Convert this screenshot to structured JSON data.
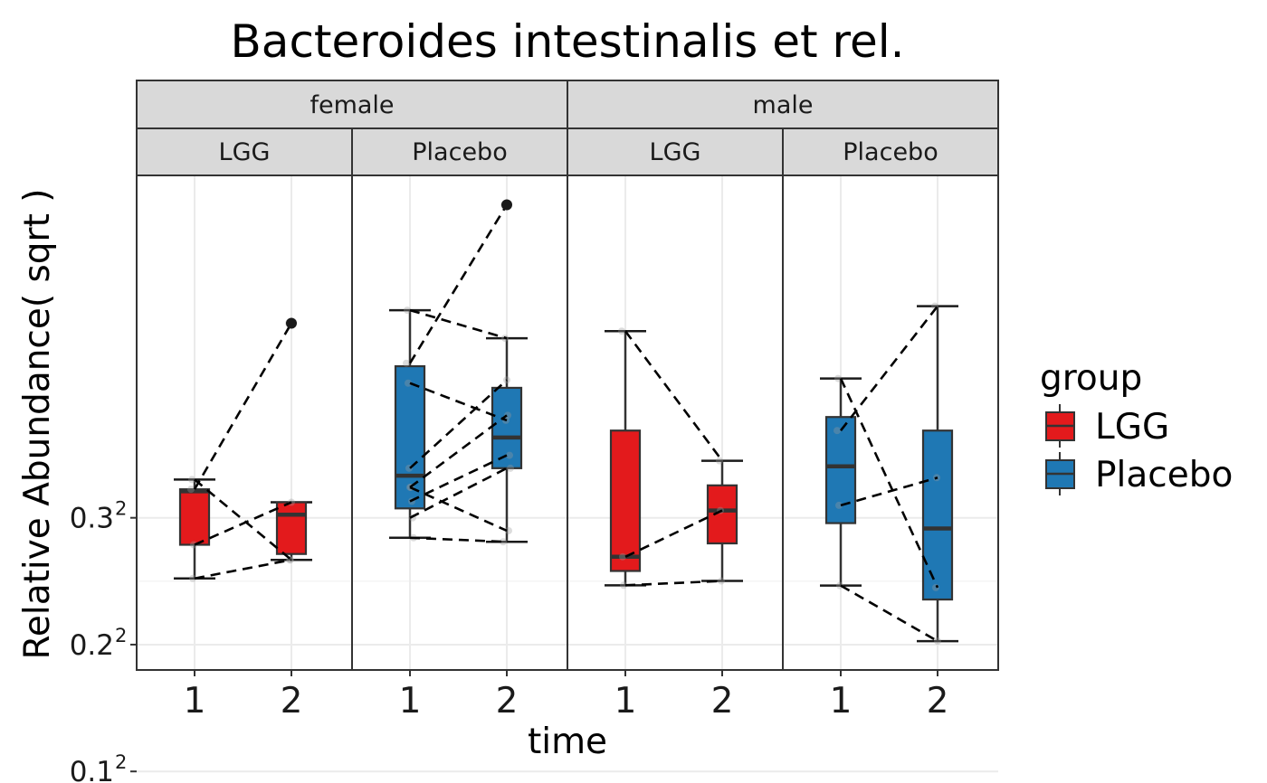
{
  "chart_data": {
    "type": "box",
    "title": "Bacteroides intestinalis et rel.",
    "xlabel": "time",
    "ylabel": "Relative Abundance( sqrt )",
    "y_scale": "sqrt",
    "ylim": [
      0.0324,
      0.3249
    ],
    "y_ticks": [
      {
        "value": 0.01,
        "label": "0.1",
        "exp": "2"
      },
      {
        "value": 0.04,
        "label": "0.2",
        "exp": "2"
      },
      {
        "value": 0.09,
        "label": "0.3",
        "exp": "2"
      }
    ],
    "x_categories": [
      "1",
      "2"
    ],
    "facet_rows": [
      {
        "label": "female",
        "panels": [
          "female-lgg",
          "female-placebo"
        ]
      },
      {
        "label": "male",
        "panels": [
          "male-lgg",
          "male-placebo"
        ]
      }
    ],
    "legend": {
      "title": "group",
      "position": "right",
      "items": [
        {
          "label": "LGG",
          "color": "#E31A1C"
        },
        {
          "label": "Placebo",
          "color": "#1F78B4"
        }
      ]
    },
    "grid": true,
    "panels": [
      {
        "id": "female-lgg",
        "sex": "female",
        "group": "LGG",
        "fill": "#E31A1C",
        "boxes": [
          {
            "time": "1",
            "min": 0.0636,
            "q1": 0.0777,
            "median": 0.103,
            "q3": 0.104,
            "max": 0.109
          },
          {
            "time": "2",
            "min": 0.0712,
            "q1": 0.0737,
            "median": 0.0915,
            "q3": 0.0975,
            "max": 0.0975
          }
        ],
        "outliers": [
          {
            "time": "2",
            "y": 0.2056
          }
        ],
        "pairs": [
          [
            0.104,
            0.2056
          ],
          [
            0.109,
            0.0712
          ],
          [
            0.0636,
            0.0712
          ],
          [
            0.0777,
            0.0975
          ]
        ]
      },
      {
        "id": "female-placebo",
        "sex": "female",
        "group": "Placebo",
        "fill": "#1F78B4",
        "boxes": [
          {
            "time": "1",
            "min": 0.0808,
            "q1": 0.0945,
            "median": 0.111,
            "q3": 0.176,
            "max": 0.215
          },
          {
            "time": "2",
            "min": 0.079,
            "q1": 0.115,
            "median": 0.132,
            "q3": 0.162,
            "max": 0.195
          }
        ],
        "outliers": [
          {
            "time": "2",
            "y": 0.299
          }
        ],
        "pairs": [
          [
            0.178,
            0.299
          ],
          [
            0.215,
            0.195
          ],
          [
            0.165,
            0.142
          ],
          [
            0.115,
            0.167
          ],
          [
            0.105,
            0.145
          ],
          [
            0.105,
            0.084
          ],
          [
            0.098,
            0.122
          ],
          [
            0.09,
            0.115
          ],
          [
            0.0808,
            0.079
          ]
        ]
      },
      {
        "id": "male-lgg",
        "sex": "male",
        "group": "LGG",
        "fill": "#E31A1C",
        "boxes": [
          {
            "time": "1",
            "min": 0.0609,
            "q1": 0.0666,
            "median": 0.0725,
            "q3": 0.136,
            "max": 0.2
          },
          {
            "time": "2",
            "min": 0.0626,
            "q1": 0.0783,
            "median": 0.0935,
            "q3": 0.106,
            "max": 0.119
          }
        ],
        "outliers": [],
        "pairs": [
          [
            0.2,
            0.119
          ],
          [
            0.0725,
            0.0935
          ],
          [
            0.0609,
            0.0626
          ]
        ]
      },
      {
        "id": "male-placebo",
        "sex": "male",
        "group": "Placebo",
        "fill": "#1F78B4",
        "boxes": [
          {
            "time": "1",
            "min": 0.0608,
            "q1": 0.0875,
            "median": 0.116,
            "q3": 0.144,
            "max": 0.168
          },
          {
            "time": "2",
            "min": 0.0411,
            "q1": 0.0555,
            "median": 0.085,
            "q3": 0.136,
            "max": 0.218
          }
        ],
        "outliers": [],
        "pairs": [
          [
            0.136,
            0.218
          ],
          [
            0.168,
            0.06
          ],
          [
            0.096,
            0.11
          ],
          [
            0.0608,
            0.0411
          ]
        ]
      }
    ]
  }
}
